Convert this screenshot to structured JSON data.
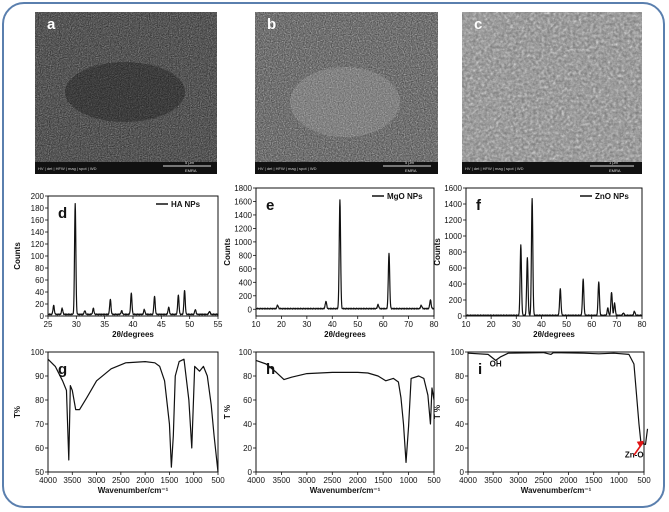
{
  "sem_images": [
    {
      "label": "a",
      "bar": "HV | det | HFW | mag | spot | WD",
      "scale": "5 μm",
      "org": "EMRA"
    },
    {
      "label": "b",
      "bar": "HV | det | HFW | mag | spot | WD",
      "scale": "5 μm",
      "org": "EMRA"
    },
    {
      "label": "c",
      "bar": "HV | det | HFW | mag | spot | WD",
      "scale": "1 μm",
      "org": "EMRA"
    }
  ],
  "chart_data": [
    {
      "id": "d",
      "label": "d",
      "type": "line",
      "legend": "HA NPs",
      "xlabel": "2θ/degrees",
      "ylabel": "Counts",
      "xlim": [
        25,
        55
      ],
      "ylim": [
        0,
        200
      ],
      "xticks": [
        25,
        30,
        35,
        40,
        45,
        50,
        55
      ],
      "yticks": [
        0,
        20,
        40,
        60,
        80,
        100,
        120,
        140,
        160,
        180,
        200
      ],
      "peaks": [
        [
          26,
          15
        ],
        [
          27.5,
          10
        ],
        [
          29.8,
          185
        ],
        [
          31.5,
          6
        ],
        [
          33,
          10
        ],
        [
          36,
          25
        ],
        [
          38,
          6
        ],
        [
          39.7,
          35
        ],
        [
          42,
          8
        ],
        [
          43.8,
          30
        ],
        [
          46.3,
          12
        ],
        [
          48,
          32
        ],
        [
          49.1,
          40
        ],
        [
          51,
          8
        ],
        [
          53.5,
          5
        ]
      ]
    },
    {
      "id": "e",
      "label": "e",
      "type": "line",
      "legend": "MgO NPs",
      "xlabel": "2θ/degrees",
      "ylabel": "Counts",
      "xlim": [
        10,
        80
      ],
      "ylim": [
        -100,
        1800
      ],
      "xticks": [
        10,
        20,
        30,
        40,
        50,
        60,
        70,
        80
      ],
      "yticks": [
        0,
        200,
        400,
        600,
        800,
        1000,
        1200,
        1400,
        1600,
        1800
      ],
      "peaks": [
        [
          18.5,
          50
        ],
        [
          37.5,
          110
        ],
        [
          43,
          1610
        ],
        [
          58,
          60
        ],
        [
          62.3,
          820
        ],
        [
          75,
          50
        ],
        [
          78.6,
          130
        ]
      ]
    },
    {
      "id": "f",
      "label": "f",
      "type": "line",
      "legend": "ZnO NPs",
      "xlabel": "2θ/degrees",
      "ylabel": "Counts",
      "xlim": [
        10,
        80
      ],
      "ylim": [
        0,
        1600
      ],
      "xticks": [
        10,
        20,
        30,
        40,
        50,
        60,
        70,
        80
      ],
      "yticks": [
        0,
        200,
        400,
        600,
        800,
        1000,
        1200,
        1400,
        1600
      ],
      "peaks": [
        [
          31.8,
          880
        ],
        [
          34.4,
          720
        ],
        [
          36.3,
          1460
        ],
        [
          47.5,
          330
        ],
        [
          56.6,
          450
        ],
        [
          62.8,
          420
        ],
        [
          66.4,
          90
        ],
        [
          67.9,
          290
        ],
        [
          69.1,
          150
        ],
        [
          72.6,
          30
        ],
        [
          77,
          50
        ]
      ]
    },
    {
      "id": "g",
      "label": "g",
      "type": "line",
      "legend": "",
      "xlabel": "Wavenumber/cm⁻¹",
      "ylabel": "T%",
      "xlim": [
        4000,
        500
      ],
      "ylim": [
        50,
        100
      ],
      "reversed": true,
      "xticks": [
        4000,
        3500,
        3000,
        2500,
        2000,
        1500,
        1000,
        500
      ],
      "yticks": [
        50,
        60,
        70,
        80,
        90,
        100
      ],
      "points": [
        [
          4000,
          97
        ],
        [
          3850,
          94
        ],
        [
          3700,
          88
        ],
        [
          3620,
          84
        ],
        [
          3572,
          55
        ],
        [
          3540,
          86
        ],
        [
          3500,
          84
        ],
        [
          3430,
          76
        ],
        [
          3350,
          76
        ],
        [
          3200,
          81
        ],
        [
          3000,
          88
        ],
        [
          2700,
          93
        ],
        [
          2400,
          95.5
        ],
        [
          2000,
          96
        ],
        [
          1800,
          95.5
        ],
        [
          1700,
          94
        ],
        [
          1600,
          88
        ],
        [
          1500,
          70
        ],
        [
          1460,
          52
        ],
        [
          1420,
          65
        ],
        [
          1380,
          90
        ],
        [
          1300,
          96
        ],
        [
          1200,
          97
        ],
        [
          1100,
          80
        ],
        [
          1040,
          60
        ],
        [
          980,
          94
        ],
        [
          880,
          92
        ],
        [
          800,
          94
        ],
        [
          720,
          90
        ],
        [
          640,
          78
        ],
        [
          580,
          65
        ],
        [
          500,
          50
        ]
      ]
    },
    {
      "id": "h",
      "label": "h",
      "type": "line",
      "legend": "",
      "xlabel": "Wavenumber/cm⁻¹",
      "ylabel": "T %",
      "xlim": [
        4000,
        500
      ],
      "ylim": [
        0,
        100
      ],
      "reversed": true,
      "xticks": [
        4000,
        3500,
        3000,
        2500,
        2000,
        1500,
        1000,
        500
      ],
      "yticks": [
        0,
        20,
        40,
        60,
        80,
        100
      ],
      "points": [
        [
          4000,
          93
        ],
        [
          3800,
          90
        ],
        [
          3600,
          83
        ],
        [
          3450,
          77
        ],
        [
          3300,
          79
        ],
        [
          3000,
          82
        ],
        [
          2500,
          83
        ],
        [
          2000,
          83
        ],
        [
          1800,
          82.5
        ],
        [
          1600,
          80
        ],
        [
          1450,
          76
        ],
        [
          1300,
          78
        ],
        [
          1200,
          75
        ],
        [
          1150,
          62
        ],
        [
          1100,
          40
        ],
        [
          1050,
          8
        ],
        [
          1000,
          38
        ],
        [
          950,
          78
        ],
        [
          800,
          80
        ],
        [
          700,
          78
        ],
        [
          620,
          64
        ],
        [
          570,
          40
        ],
        [
          540,
          70
        ],
        [
          500,
          60
        ]
      ]
    },
    {
      "id": "i",
      "label": "i",
      "type": "line",
      "legend": "",
      "xlabel": "Wavenumber/cm⁻¹",
      "ylabel": "T %",
      "xlim": [
        4000,
        500
      ],
      "ylim": [
        0,
        100
      ],
      "reversed": true,
      "xticks": [
        4000,
        3500,
        3000,
        2500,
        2000,
        1500,
        1000,
        500
      ],
      "yticks": [
        0,
        20,
        40,
        60,
        80,
        100
      ],
      "points": [
        [
          4000,
          99
        ],
        [
          3600,
          98
        ],
        [
          3450,
          93
        ],
        [
          3350,
          96
        ],
        [
          3200,
          99
        ],
        [
          2500,
          99.5
        ],
        [
          2350,
          98
        ],
        [
          2300,
          99.5
        ],
        [
          1700,
          99
        ],
        [
          1400,
          98.5
        ],
        [
          1100,
          99
        ],
        [
          800,
          98
        ],
        [
          700,
          90
        ],
        [
          650,
          65
        ],
        [
          600,
          40
        ],
        [
          560,
          24
        ],
        [
          470,
          23
        ],
        [
          430,
          36
        ]
      ],
      "annotations": [
        "OH",
        "Zn-O"
      ]
    }
  ]
}
